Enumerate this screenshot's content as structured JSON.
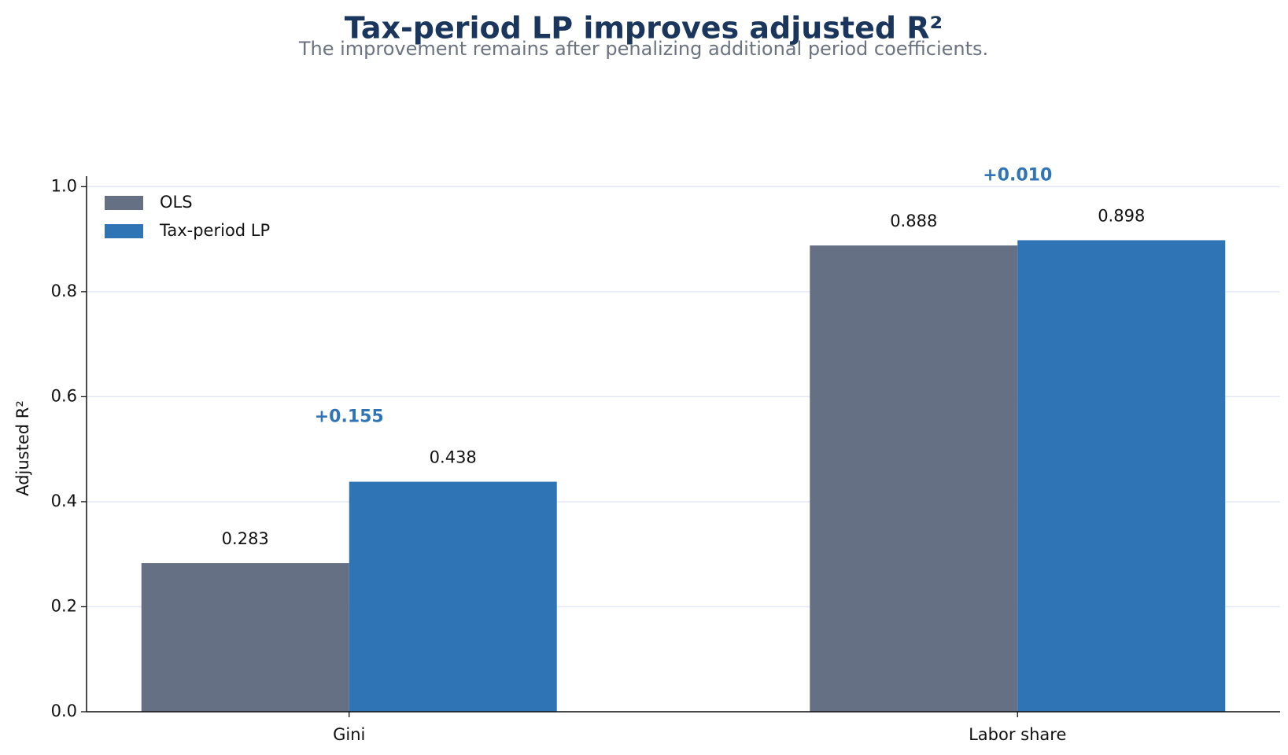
{
  "chart_data": {
    "type": "bar",
    "title": "Tax-period LP improves adjusted R²",
    "subtitle": "The improvement remains after penalizing additional period coefficients.",
    "y_label": "Adjusted R²",
    "categories": [
      "Gini",
      "Labor share"
    ],
    "series": [
      {
        "name": "OLS",
        "color": "#667085",
        "values": [
          0.283,
          0.888
        ]
      },
      {
        "name": "Tax-period LP",
        "color": "#2f74b5",
        "values": [
          0.438,
          0.898
        ]
      }
    ],
    "annotations": [
      "+0.155",
      "+0.010"
    ],
    "annotation_color": "#2f74b5",
    "ylim": [
      0,
      1.02
    ],
    "yticks": [
      {
        "value": 0,
        "label": "0.0"
      },
      0.2,
      0.4,
      0.6,
      0.8,
      {
        "value": 1,
        "label": "1.0"
      }
    ],
    "grid": true,
    "legend": "upper-left"
  }
}
